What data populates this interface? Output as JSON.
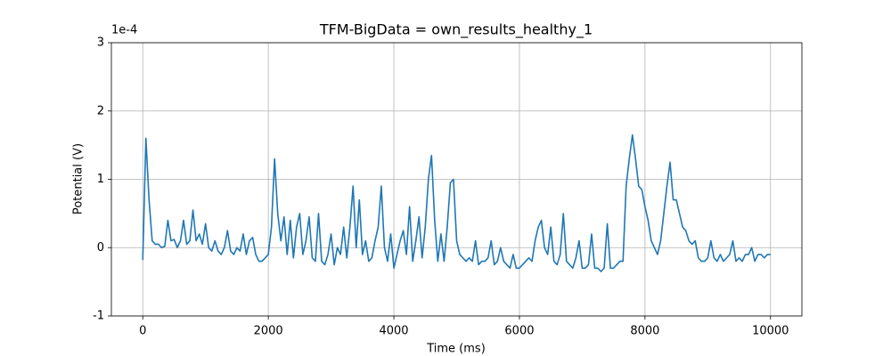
{
  "chart_data": {
    "type": "line",
    "title": "TFM-BigData = own_results_healthy_1",
    "xlabel": "Time (ms)",
    "ylabel": "Potential (V)",
    "y_offset_label": "1e-4",
    "color": "#1f77b4",
    "grid": true,
    "xlim": [
      -500,
      10500
    ],
    "ylim": [
      -1,
      3
    ],
    "xticks": [
      0,
      2000,
      4000,
      6000,
      8000,
      10000
    ],
    "yticks": [
      -1,
      0,
      1,
      2,
      3
    ],
    "x": [
      0,
      50,
      100,
      150,
      200,
      250,
      300,
      350,
      400,
      450,
      500,
      550,
      600,
      650,
      700,
      750,
      800,
      850,
      900,
      950,
      1000,
      1050,
      1100,
      1150,
      1200,
      1250,
      1300,
      1350,
      1400,
      1450,
      1500,
      1550,
      1600,
      1650,
      1700,
      1750,
      1800,
      1850,
      1900,
      1950,
      2000,
      2050,
      2100,
      2150,
      2200,
      2250,
      2300,
      2350,
      2400,
      2450,
      2500,
      2550,
      2600,
      2650,
      2700,
      2750,
      2800,
      2850,
      2900,
      2950,
      3000,
      3050,
      3100,
      3150,
      3200,
      3250,
      3300,
      3350,
      3400,
      3450,
      3500,
      3550,
      3600,
      3650,
      3700,
      3750,
      3800,
      3850,
      3900,
      3950,
      4000,
      4050,
      4100,
      4150,
      4200,
      4250,
      4300,
      4350,
      4400,
      4450,
      4500,
      4550,
      4600,
      4650,
      4700,
      4750,
      4800,
      4850,
      4900,
      4950,
      5000,
      5050,
      5100,
      5150,
      5200,
      5250,
      5300,
      5350,
      5400,
      5450,
      5500,
      5550,
      5600,
      5650,
      5700,
      5750,
      5800,
      5850,
      5900,
      5950,
      6000,
      6050,
      6100,
      6150,
      6200,
      6250,
      6300,
      6350,
      6400,
      6450,
      6500,
      6550,
      6600,
      6650,
      6700,
      6750,
      6800,
      6850,
      6900,
      6950,
      7000,
      7050,
      7100,
      7150,
      7200,
      7250,
      7300,
      7350,
      7400,
      7450,
      7500,
      7550,
      7600,
      7650,
      7700,
      7750,
      7800,
      7850,
      7900,
      7950,
      8000,
      8050,
      8100,
      8150,
      8200,
      8250,
      8300,
      8350,
      8400,
      8450,
      8500,
      8550,
      8600,
      8650,
      8700,
      8750,
      8800,
      8850,
      8900,
      8950,
      9000,
      9050,
      9100,
      9150,
      9200,
      9250,
      9300,
      9350,
      9400,
      9450,
      9500,
      9550,
      9600,
      9650,
      9700,
      9750,
      9800,
      9850,
      9900,
      9950,
      10000
    ],
    "values": [
      -0.18,
      1.6,
      0.7,
      0.1,
      0.05,
      0.05,
      0.0,
      0.02,
      0.4,
      0.1,
      0.12,
      0.0,
      0.1,
      0.4,
      0.05,
      0.1,
      0.55,
      0.1,
      0.2,
      0.05,
      0.35,
      0.0,
      -0.05,
      0.1,
      -0.05,
      -0.1,
      0.0,
      0.25,
      -0.05,
      -0.1,
      0.0,
      -0.05,
      0.2,
      -0.1,
      0.1,
      0.15,
      -0.1,
      -0.2,
      -0.2,
      -0.15,
      -0.1,
      0.3,
      1.3,
      0.5,
      0.1,
      0.45,
      -0.1,
      0.4,
      -0.15,
      0.3,
      0.5,
      -0.1,
      0.1,
      0.45,
      -0.15,
      -0.2,
      0.5,
      -0.2,
      -0.25,
      -0.1,
      0.2,
      -0.25,
      0.0,
      -0.1,
      0.3,
      -0.15,
      0.3,
      0.9,
      0.0,
      0.7,
      -0.1,
      0.1,
      -0.2,
      -0.15,
      0.1,
      0.3,
      0.9,
      0.0,
      -0.2,
      0.2,
      -0.3,
      -0.1,
      0.1,
      0.25,
      -0.1,
      0.6,
      -0.2,
      0.1,
      0.45,
      -0.15,
      0.3,
      1.0,
      1.35,
      0.4,
      -0.2,
      0.2,
      -0.2,
      0.3,
      0.95,
      1.0,
      0.1,
      -0.1,
      -0.15,
      -0.2,
      -0.15,
      -0.2,
      0.1,
      -0.25,
      -0.2,
      -0.2,
      -0.15,
      0.1,
      -0.25,
      -0.2,
      0.0,
      -0.2,
      -0.25,
      -0.3,
      -0.1,
      -0.3,
      -0.3,
      -0.25,
      -0.2,
      -0.15,
      -0.2,
      0.1,
      0.3,
      0.4,
      0.0,
      -0.1,
      0.3,
      -0.2,
      -0.25,
      -0.1,
      0.5,
      -0.2,
      -0.25,
      -0.3,
      -0.15,
      0.1,
      -0.3,
      -0.3,
      -0.25,
      0.2,
      -0.3,
      -0.3,
      -0.35,
      -0.3,
      0.35,
      -0.3,
      -0.3,
      -0.25,
      -0.2,
      -0.2,
      0.9,
      1.3,
      1.65,
      1.3,
      0.9,
      0.85,
      0.6,
      0.4,
      0.1,
      0.0,
      -0.1,
      0.1,
      0.5,
      0.9,
      1.25,
      0.7,
      0.7,
      0.5,
      0.3,
      0.25,
      0.1,
      0.05,
      0.1,
      -0.15,
      -0.2,
      -0.2,
      -0.15,
      0.1,
      -0.15,
      -0.2,
      -0.1,
      -0.2,
      -0.15,
      -0.1,
      0.1,
      -0.2,
      -0.15,
      -0.2,
      -0.1,
      -0.1,
      0.0,
      -0.2,
      -0.1,
      -0.1,
      -0.15,
      -0.1,
      -0.1
    ]
  }
}
